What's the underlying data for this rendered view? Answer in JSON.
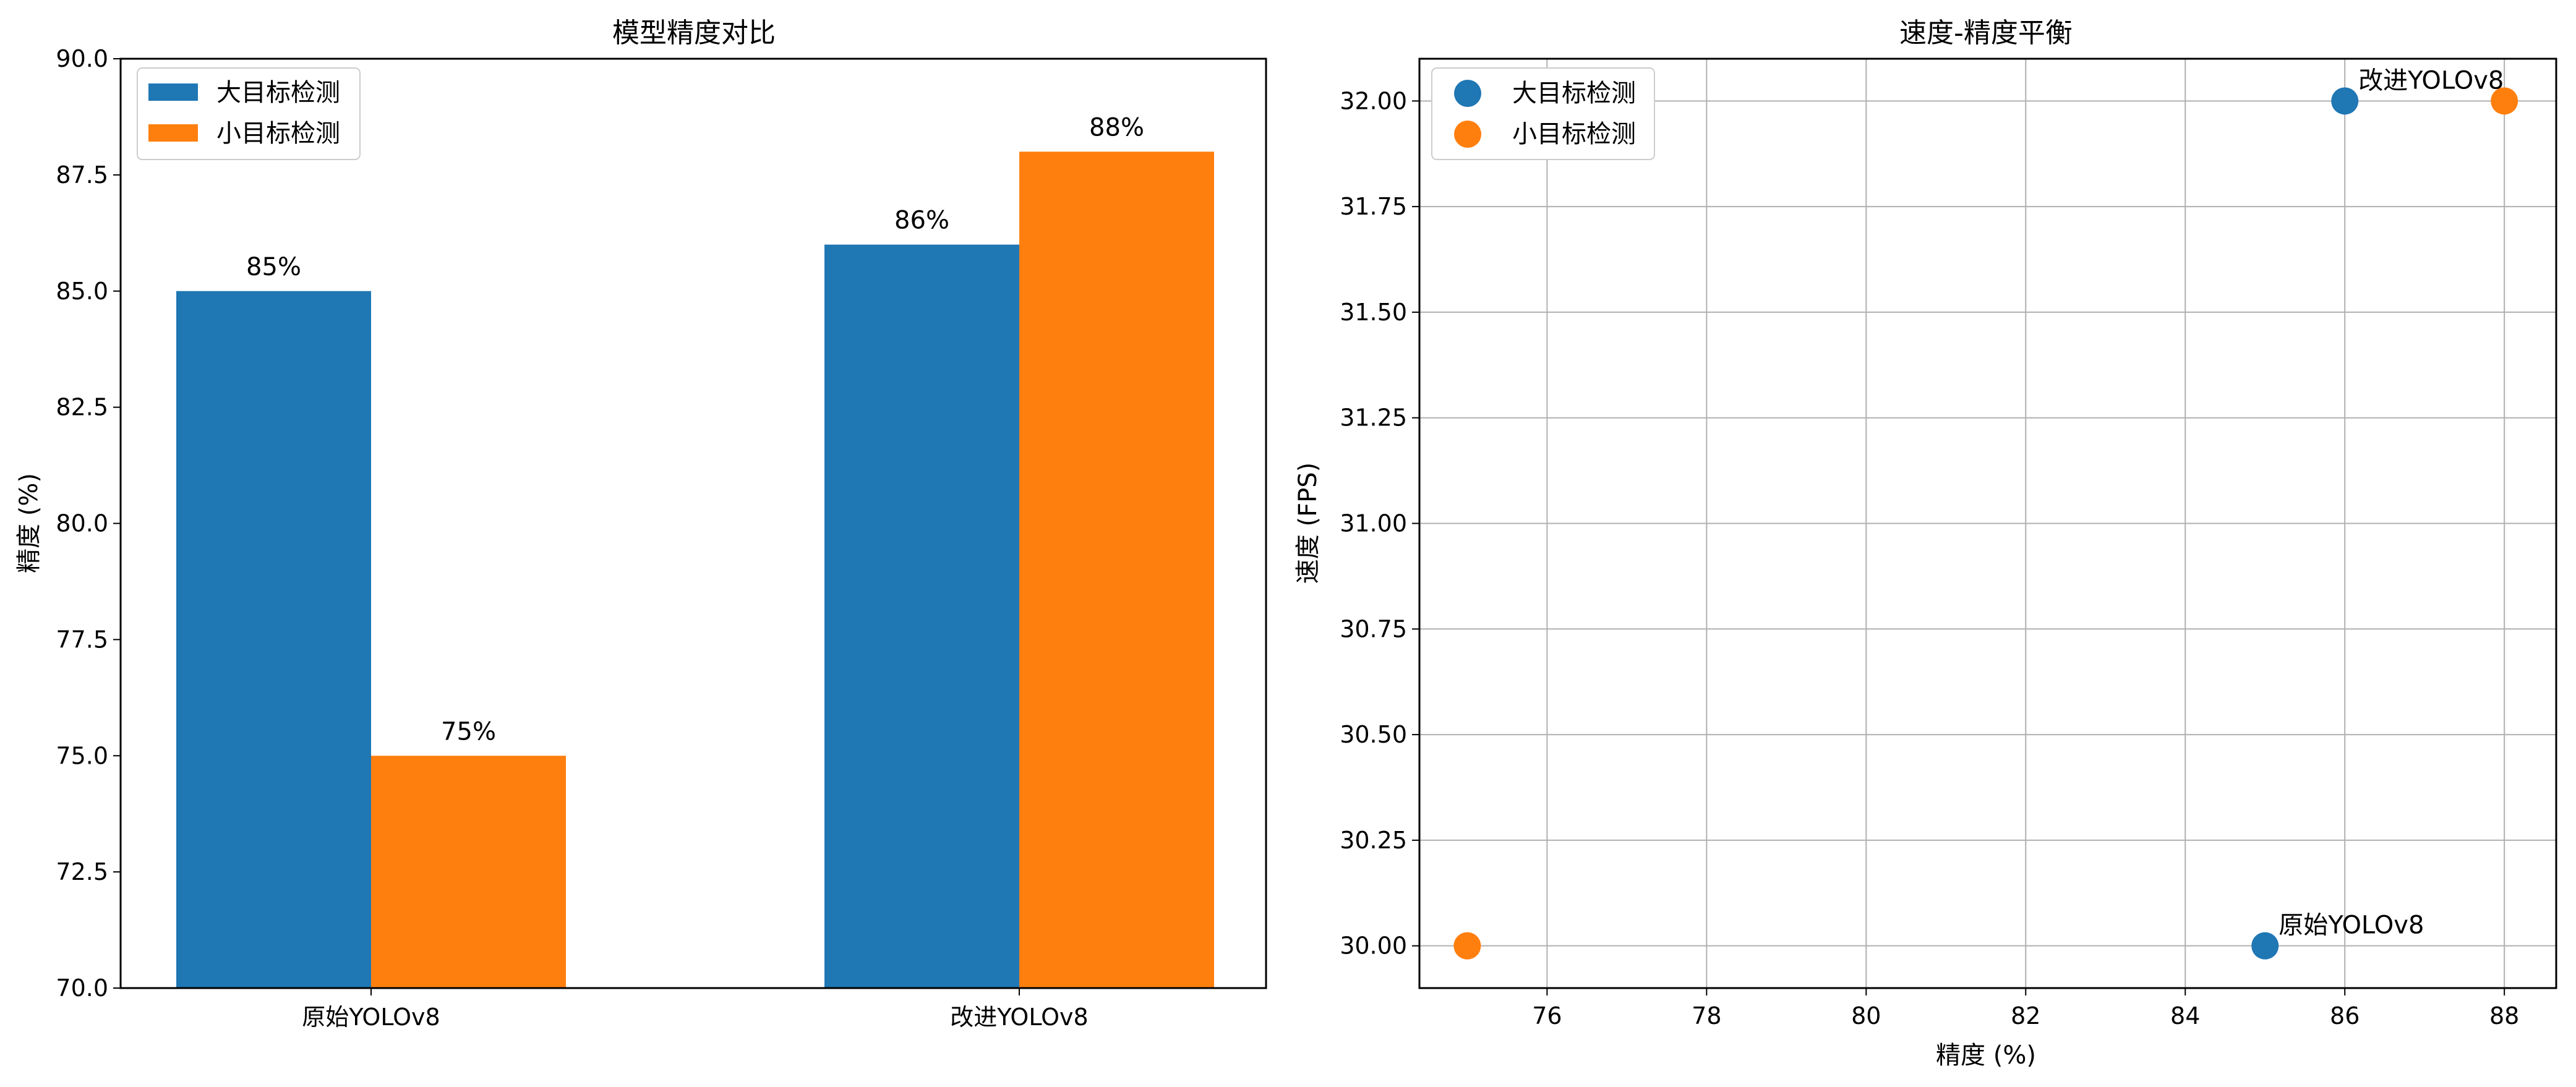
{
  "colors": {
    "series1": "#1f77b4",
    "series2": "#ff7f0e",
    "grid": "#b0b0b0"
  },
  "chart_data": [
    {
      "type": "bar",
      "title": "模型精度对比",
      "xlabel": "",
      "ylabel": "精度 (%)",
      "ylim": [
        70,
        90
      ],
      "yticks": [
        70.0,
        72.5,
        75.0,
        77.5,
        80.0,
        82.5,
        85.0,
        87.5,
        90.0
      ],
      "ytick_labels": [
        "70.0",
        "72.5",
        "75.0",
        "77.5",
        "80.0",
        "82.5",
        "85.0",
        "87.5",
        "90.0"
      ],
      "categories": [
        "原始YOLOv8",
        "改进YOLOv8"
      ],
      "series": [
        {
          "name": "大目标检测",
          "values": [
            85,
            86
          ],
          "labels": [
            "85%",
            "86%"
          ]
        },
        {
          "name": "小目标检测",
          "values": [
            75,
            88
          ],
          "labels": [
            "75%",
            "88%"
          ]
        }
      ],
      "legend": "upper-left",
      "grid": false
    },
    {
      "type": "scatter",
      "title": "速度-精度平衡",
      "xlabel": "精度 (%)",
      "ylabel": "速度 (FPS)",
      "xlim": [
        74.4,
        88.65
      ],
      "ylim": [
        29.9,
        32.1
      ],
      "xticks": [
        76,
        78,
        80,
        82,
        84,
        86,
        88
      ],
      "xtick_labels": [
        "76",
        "78",
        "80",
        "82",
        "84",
        "86",
        "88"
      ],
      "yticks": [
        30.0,
        30.25,
        30.5,
        30.75,
        31.0,
        31.25,
        31.5,
        31.75,
        32.0
      ],
      "ytick_labels": [
        "30.00",
        "30.25",
        "30.50",
        "30.75",
        "31.00",
        "31.25",
        "31.50",
        "31.75",
        "32.00"
      ],
      "series": [
        {
          "name": "大目标检测",
          "points": [
            {
              "x": 85,
              "y": 30
            },
            {
              "x": 86,
              "y": 32
            }
          ]
        },
        {
          "name": "小目标检测",
          "points": [
            {
              "x": 75,
              "y": 30
            },
            {
              "x": 88,
              "y": 32
            }
          ]
        }
      ],
      "annotations": [
        {
          "text": "原始YOLOv8",
          "x": 85,
          "y": 30
        },
        {
          "text": "改进YOLOv8",
          "x": 86,
          "y": 32
        }
      ],
      "legend": "upper-left",
      "grid": true
    }
  ]
}
